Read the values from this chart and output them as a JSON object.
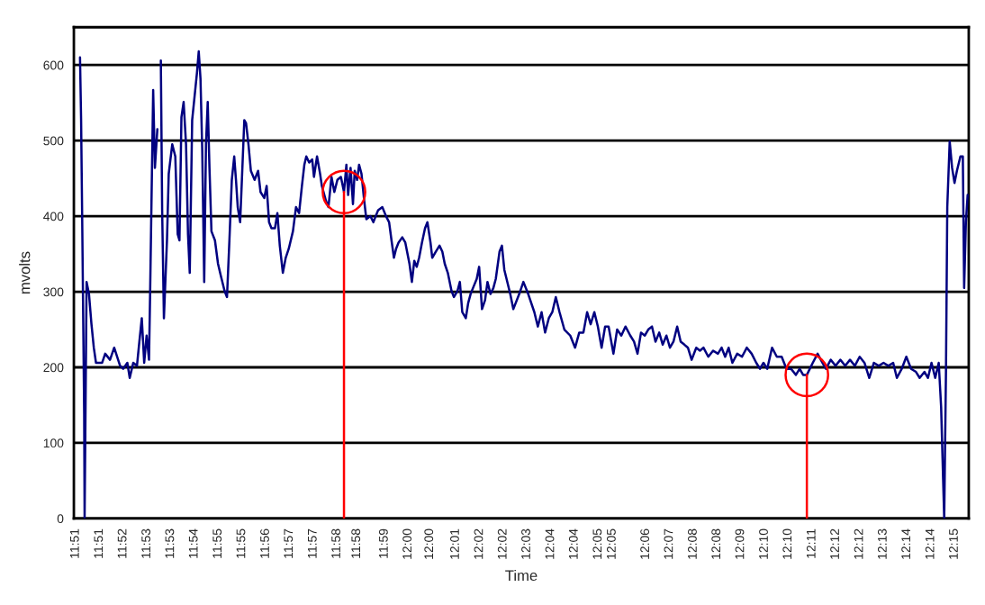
{
  "chart_data": {
    "type": "line",
    "xlabel": "Time",
    "ylabel": "mvolts",
    "xlim": [
      11.845,
      12.2535
    ],
    "ylim": [
      0,
      650
    ],
    "yticks": [
      0,
      100,
      200,
      300,
      400,
      500,
      600
    ],
    "xticks": [
      {
        "value": 11.8458,
        "label": "11:51"
      },
      {
        "value": 11.8567,
        "label": "11:51"
      },
      {
        "value": 11.8675,
        "label": "11:52"
      },
      {
        "value": 11.8784,
        "label": "11:53"
      },
      {
        "value": 11.8892,
        "label": "11:53"
      },
      {
        "value": 11.9,
        "label": "11:54"
      },
      {
        "value": 11.9109,
        "label": "11:55"
      },
      {
        "value": 11.9217,
        "label": "11:55"
      },
      {
        "value": 11.9326,
        "label": "11:56"
      },
      {
        "value": 11.9434,
        "label": "11:57"
      },
      {
        "value": 11.9543,
        "label": "11:57"
      },
      {
        "value": 11.9651,
        "label": "11:58"
      },
      {
        "value": 11.9742,
        "label": "11:58"
      },
      {
        "value": 11.9868,
        "label": "11:59"
      },
      {
        "value": 11.9976,
        "label": "12:00"
      },
      {
        "value": 12.0075,
        "label": "12:00"
      },
      {
        "value": 12.0193,
        "label": "12:01"
      },
      {
        "value": 12.0302,
        "label": "12:02"
      },
      {
        "value": 12.041,
        "label": "12:02"
      },
      {
        "value": 12.0518,
        "label": "12:03"
      },
      {
        "value": 12.0627,
        "label": "12:04"
      },
      {
        "value": 12.0735,
        "label": "12:04"
      },
      {
        "value": 12.0844,
        "label": "12:05"
      },
      {
        "value": 12.0908,
        "label": "12:05"
      },
      {
        "value": 12.1061,
        "label": "12:06"
      },
      {
        "value": 12.1169,
        "label": "12:07"
      },
      {
        "value": 12.1278,
        "label": "12:08"
      },
      {
        "value": 12.1386,
        "label": "12:08"
      },
      {
        "value": 12.1494,
        "label": "12:09"
      },
      {
        "value": 12.1603,
        "label": "12:10"
      },
      {
        "value": 12.1711,
        "label": "12:10"
      },
      {
        "value": 12.182,
        "label": "12:11"
      },
      {
        "value": 12.1928,
        "label": "12:12"
      },
      {
        "value": 12.2037,
        "label": "12:12"
      },
      {
        "value": 12.2145,
        "label": "12:13"
      },
      {
        "value": 12.2253,
        "label": "12:14"
      },
      {
        "value": 12.2362,
        "label": "12:14"
      },
      {
        "value": 12.247,
        "label": "12:15"
      }
    ],
    "grid": "y",
    "legend": false,
    "marker": "none",
    "line_style": "solid",
    "ref_lines": [
      {
        "axis": "x",
        "value": 11.9683,
        "label": null,
        "color": "#ff0000"
      },
      {
        "axis": "x",
        "value": 12.1796,
        "label": null,
        "color": "#ff0000"
      }
    ],
    "series": [
      {
        "color": "#000080",
        "x": [
          11.8478,
          11.8483,
          11.8488,
          11.8497,
          11.8499,
          11.8508,
          11.8519,
          11.853,
          11.8541,
          11.8551,
          11.8579,
          11.8593,
          11.8615,
          11.8634,
          11.8661,
          11.8675,
          11.8694,
          11.8705,
          11.8721,
          11.8738,
          11.8749,
          11.876,
          11.8771,
          11.8782,
          11.8793,
          11.8798,
          11.8812,
          11.882,
          11.8831,
          11.8839,
          11.8847,
          11.8853,
          11.8861,
          11.8875,
          11.8883,
          11.8899,
          11.8913,
          11.8924,
          11.8932,
          11.8941,
          11.8951,
          11.8962,
          11.8971,
          11.8979,
          11.899,
          11.9004,
          11.9012,
          11.902,
          11.9028,
          11.9036,
          11.9045,
          11.9053,
          11.9061,
          11.9069,
          11.9078,
          11.9094,
          11.9108,
          11.9121,
          11.9138,
          11.9149,
          11.916,
          11.9171,
          11.9182,
          11.919,
          11.9198,
          11.9209,
          11.9217,
          11.9228,
          11.9236,
          11.9247,
          11.9258,
          11.9275,
          11.9291,
          11.9302,
          11.9319,
          11.933,
          11.9341,
          11.9352,
          11.9368,
          11.9379,
          11.939,
          11.9404,
          11.9417,
          11.9431,
          11.945,
          11.9464,
          11.9478,
          11.9491,
          11.9502,
          11.9511,
          11.9524,
          11.9538,
          11.9546,
          11.956,
          11.9574,
          11.9582,
          11.9601,
          11.9612,
          11.9626,
          11.9639,
          11.9653,
          11.9669,
          11.9683,
          11.9694,
          11.9702,
          11.9713,
          11.9724,
          11.9732,
          11.9743,
          11.9752,
          11.9763,
          11.9774,
          11.9785,
          11.9804,
          11.9817,
          11.9839,
          11.9858,
          11.9875,
          11.9889,
          11.99,
          11.9911,
          11.9921,
          11.9932,
          11.9949,
          11.9963,
          11.9982,
          11.9993,
          12.0004,
          12.0015,
          12.0026,
          12.0039,
          12.0053,
          12.0064,
          12.0078,
          12.0086,
          12.0102,
          12.0119,
          12.0132,
          12.0143,
          12.0157,
          12.0174,
          12.0185,
          12.0201,
          12.0212,
          12.0223,
          12.0239,
          12.025,
          12.0261,
          12.0272,
          12.0289,
          12.03,
          12.0313,
          12.0327,
          12.0338,
          12.0352,
          12.0365,
          12.0376,
          12.0393,
          12.0404,
          12.0415,
          12.0442,
          12.0456,
          12.0483,
          12.0502,
          12.0524,
          12.0552,
          12.0568,
          12.0585,
          12.0601,
          12.0618,
          12.0634,
          12.065,
          12.0667,
          12.0689,
          12.0716,
          12.0738,
          12.0757,
          12.0776,
          12.0793,
          12.0809,
          12.0826,
          12.0842,
          12.0859,
          12.0875,
          12.0891,
          12.0913,
          12.093,
          12.0949,
          12.0968,
          12.099,
          12.1007,
          12.1023,
          12.1039,
          12.1056,
          12.1072,
          12.1089,
          12.1105,
          12.1122,
          12.1138,
          12.1155,
          12.1171,
          12.1187,
          12.1204,
          12.122,
          12.1237,
          12.1253,
          12.127,
          12.1291,
          12.1308,
          12.1324,
          12.1346,
          12.1368,
          12.139,
          12.1407,
          12.1423,
          12.1439,
          12.1456,
          12.1478,
          12.15,
          12.1522,
          12.1544,
          12.1565,
          12.1582,
          12.1598,
          12.1615,
          12.1637,
          12.1659,
          12.1681,
          12.1703,
          12.1724,
          12.1746,
          12.1763,
          12.1779,
          12.1796,
          12.1823,
          12.1845,
          12.1867,
          12.1883,
          12.1905,
          12.1927,
          12.1949,
          12.1971,
          12.1993,
          12.2015,
          12.2037,
          12.2059,
          12.2081,
          12.2102,
          12.2124,
          12.2146,
          12.2168,
          12.219,
          12.2207,
          12.2229,
          12.225,
          12.2272,
          12.2294,
          12.2311,
          12.2333,
          12.2349,
          12.2365,
          12.2382,
          12.2398,
          12.2409,
          12.2418,
          12.2423,
          12.2431,
          12.2437,
          12.2448,
          12.2459,
          12.247,
          12.2481,
          12.2497,
          12.2508,
          12.2514,
          12.2522,
          12.253
        ],
        "values": [
          610,
          527,
          396,
          139,
          0,
          313,
          297,
          258,
          226,
          206,
          206,
          218,
          210,
          226,
          202,
          198,
          206,
          186,
          206,
          202,
          234,
          265,
          206,
          242,
          210,
          297,
          567,
          464,
          515,
          null,
          606,
          408,
          265,
          368,
          456,
          495,
          479,
          376,
          368,
          531,
          551,
          495,
          376,
          325,
          527,
          567,
          590,
          618,
          582,
          487,
          313,
          495,
          551,
          464,
          380,
          368,
          337,
          321,
          301,
          293,
          368,
          448,
          479,
          448,
          412,
          392,
          448,
          527,
          523,
          495,
          460,
          448,
          460,
          432,
          424,
          440,
          392,
          384,
          384,
          404,
          361,
          325,
          345,
          357,
          380,
          412,
          404,
          440,
          468,
          479,
          471,
          475,
          452,
          479,
          456,
          440,
          420,
          412,
          452,
          432,
          448,
          452,
          432,
          468,
          428,
          464,
          416,
          460,
          448,
          468,
          456,
          424,
          396,
          400,
          392,
          408,
          412,
          400,
          392,
          368,
          345,
          357,
          365,
          372,
          365,
          337,
          313,
          341,
          333,
          345,
          365,
          384,
          392,
          365,
          345,
          353,
          361,
          353,
          337,
          325,
          301,
          293,
          301,
          313,
          273,
          265,
          285,
          297,
          305,
          317,
          333,
          277,
          289,
          313,
          297,
          305,
          317,
          353,
          361,
          329,
          297,
          277,
          297,
          313,
          297,
          273,
          254,
          273,
          246,
          265,
          273,
          293,
          273,
          250,
          242,
          226,
          246,
          246,
          273,
          257,
          273,
          254,
          226,
          254,
          254,
          218,
          250,
          242,
          254,
          242,
          234,
          218,
          246,
          242,
          250,
          254,
          234,
          246,
          230,
          242,
          226,
          234,
          254,
          234,
          230,
          226,
          210,
          226,
          222,
          226,
          214,
          222,
          218,
          226,
          214,
          226,
          206,
          218,
          214,
          226,
          218,
          206,
          198,
          206,
          198,
          226,
          214,
          214,
          198,
          198,
          190,
          198,
          190,
          190,
          206,
          218,
          206,
          198,
          210,
          202,
          210,
          202,
          210,
          202,
          214,
          206,
          186,
          206,
          202,
          206,
          202,
          206,
          186,
          198,
          214,
          198,
          194,
          186,
          194,
          186,
          206,
          186,
          206,
          147,
          52,
          0,
          194,
          412,
          499,
          464,
          444,
          460,
          479,
          479,
          305,
          392,
          428
        ]
      }
    ]
  }
}
